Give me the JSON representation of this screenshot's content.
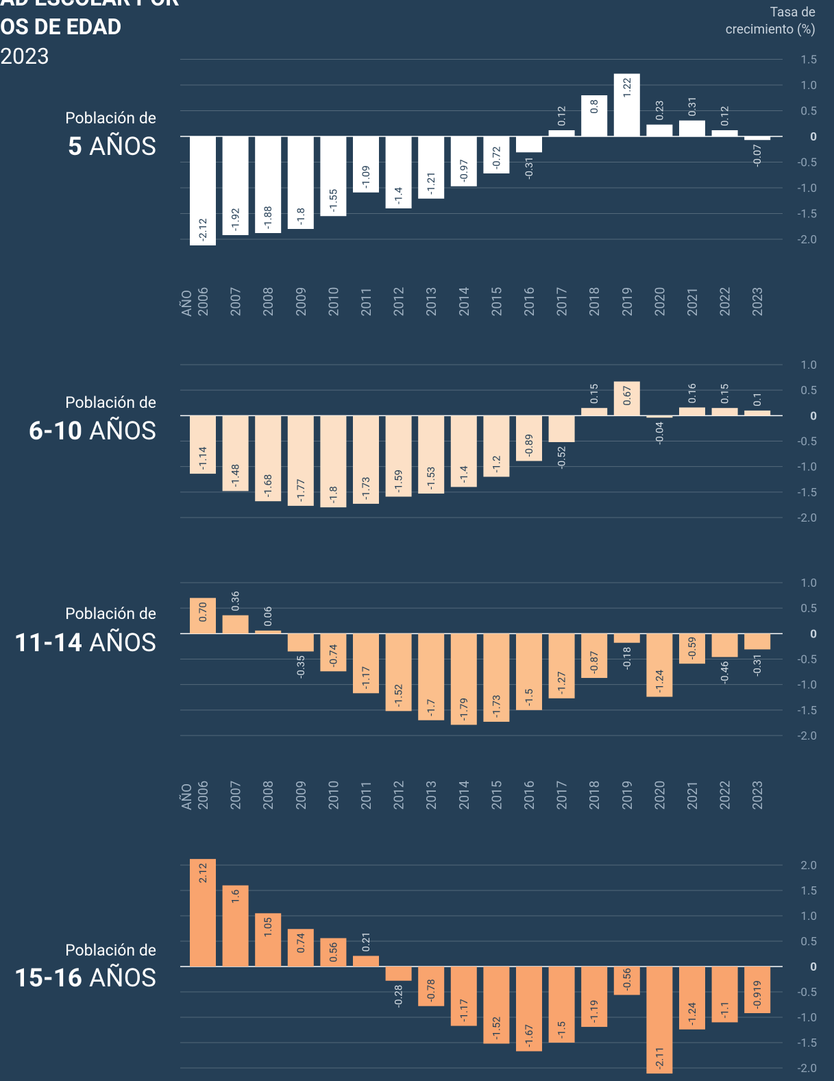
{
  "title": [
    "AD ESCOLAR POR",
    "OS DE EDAD",
    "2023"
  ],
  "y_axis_label": [
    "Tasa de",
    "crecimiento (%)"
  ],
  "chart_data": [
    {
      "type": "bar",
      "label": "Población de",
      "group": "5",
      "unit": "AÑOS",
      "color": "#ffffff",
      "x_label": "AÑO",
      "categories": [
        "2006",
        "2007",
        "2008",
        "2009",
        "2010",
        "2011",
        "2012",
        "2013",
        "2014",
        "2015",
        "2016",
        "2017",
        "2018",
        "2019",
        "2020",
        "2021",
        "2022",
        "2023"
      ],
      "values": [
        -2.12,
        -1.92,
        -1.88,
        -1.8,
        -1.55,
        -1.09,
        -1.4,
        -1.21,
        -0.97,
        -0.72,
        -0.31,
        0.12,
        0.8,
        1.22,
        0.23,
        0.31,
        0.12,
        -0.07
      ],
      "ylim": [
        -2,
        1.5
      ],
      "yticks": [
        1.5,
        {
          "value": 1,
          "label": "1.0"
        },
        0.5,
        0,
        -0.5,
        {
          "value": -1,
          "label": "-1.0"
        },
        -1.5,
        {
          "value": -2,
          "label": "-2.0"
        }
      ],
      "grid": true
    },
    {
      "type": "bar",
      "label": "Población de",
      "group": "6-10",
      "unit": "AÑOS",
      "color": "#fce0c6",
      "values": [
        -1.14,
        -1.48,
        -1.68,
        -1.77,
        -1.8,
        -1.73,
        -1.59,
        -1.53,
        -1.4,
        -1.2,
        -0.89,
        -0.52,
        0.15,
        0.67,
        -0.04,
        0.16,
        0.15,
        0.1
      ],
      "ylim": [
        -2,
        1
      ],
      "yticks": [
        {
          "value": 1,
          "label": "1.0"
        },
        0.5,
        0,
        -0.5,
        {
          "value": -1,
          "label": "-1.0"
        },
        -1.5,
        {
          "value": -2,
          "label": "-2.0"
        }
      ],
      "grid": true
    },
    {
      "type": "bar",
      "label": "Población de",
      "group": "11-14",
      "unit": "AÑOS",
      "color": "#fbbf8c",
      "x_label": "AÑO",
      "categories": [
        "2006",
        "2007",
        "2008",
        "2009",
        "2010",
        "2011",
        "2012",
        "2013",
        "2014",
        "2015",
        "2016",
        "2017",
        "2018",
        "2019",
        "2020",
        "2021",
        "2022",
        "2023"
      ],
      "values": [
        0.7,
        0.36,
        0.06,
        -0.35,
        -0.74,
        -1.17,
        -1.52,
        -1.7,
        -1.79,
        -1.73,
        -1.5,
        -1.27,
        -0.87,
        -0.18,
        -1.24,
        -0.59,
        -0.46,
        -0.31
      ],
      "value_labels": [
        "0.70",
        "0.36",
        "0.06",
        "-0.35",
        "-0.74",
        "-1.17",
        "-1.52",
        "-1.7",
        "-1.79",
        "-1.73",
        "-1.5",
        "-1.27",
        "-0.87",
        "-0.18",
        "-1.24",
        "-0.59",
        "-0.46",
        "-0.31"
      ],
      "ylim": [
        -2,
        1
      ],
      "yticks": [
        {
          "value": 1,
          "label": "1.0"
        },
        0.5,
        0,
        -0.5,
        {
          "value": -1,
          "label": "-1.0"
        },
        -1.5,
        {
          "value": -2,
          "label": "-2.0"
        }
      ],
      "grid": true
    },
    {
      "type": "bar",
      "label": "Población de",
      "group": "15-16",
      "unit": "AÑOS",
      "color": "#f9a46e",
      "values": [
        2.12,
        1.6,
        1.05,
        0.74,
        0.56,
        0.21,
        -0.28,
        -0.78,
        -1.17,
        -1.52,
        -1.67,
        -1.5,
        -1.19,
        -0.56,
        -2.11,
        -1.24,
        -1.1,
        -0.919
      ],
      "ylim": [
        -2,
        2
      ],
      "yticks": [
        {
          "value": 2,
          "label": "2.0"
        },
        1.5,
        {
          "value": 1,
          "label": "1.0"
        },
        0.5,
        0,
        -0.5,
        {
          "value": -1,
          "label": "-1.0"
        },
        -1.5,
        {
          "value": -2,
          "label": "-2.0"
        }
      ],
      "grid": true
    }
  ]
}
